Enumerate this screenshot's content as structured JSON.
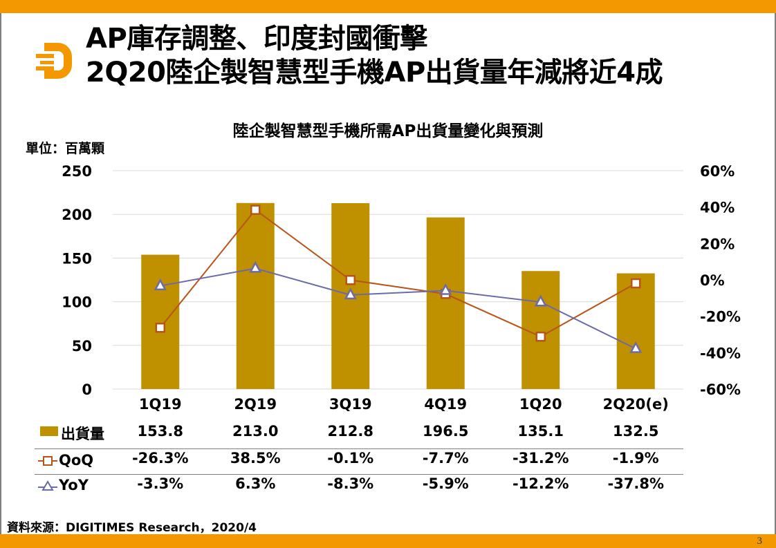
{
  "slide": {
    "title_line1": "AP庫存調整、印度封國衝擊",
    "title_line2": "2Q20陸企製智慧型手機AP出貨量年減將近4成",
    "page_number": "3",
    "source": "資料來源：DIGITIMES Research，2020/4",
    "logo_icon": "digitimes-d-logo-icon",
    "brand_color": "#f39800"
  },
  "chart_data": {
    "type": "bar",
    "title": "陸企製智慧型手機所需AP出貨量變化與預測",
    "unit_label": "單位：百萬顆",
    "categories": [
      "1Q19",
      "2Q19",
      "3Q19",
      "4Q19",
      "1Q20",
      "2Q20(e)"
    ],
    "left_axis": {
      "ylim": [
        0,
        250
      ],
      "ticks": [
        "0",
        "50",
        "100",
        "150",
        "200",
        "250"
      ]
    },
    "right_axis": {
      "ylim": [
        -60,
        60
      ],
      "ticks": [
        "-60%",
        "-40%",
        "-20%",
        "0%",
        "20%",
        "40%",
        "60%"
      ]
    },
    "grid": true,
    "series": [
      {
        "name": "出貨量",
        "type": "bar",
        "axis": "left",
        "color": "#bf9000",
        "values": [
          153.8,
          213.0,
          212.8,
          196.5,
          135.1,
          132.5
        ],
        "labels": [
          "153.8",
          "213.0",
          "212.8",
          "196.5",
          "135.1",
          "132.5"
        ]
      },
      {
        "name": "QoQ",
        "type": "line",
        "axis": "right",
        "marker": "square",
        "color": "#b8541a",
        "values": [
          -26.3,
          38.5,
          -0.1,
          -7.7,
          -31.2,
          -1.9
        ],
        "labels": [
          "-26.3%",
          "38.5%",
          "-0.1%",
          "-7.7%",
          "-31.2%",
          "-1.9%"
        ]
      },
      {
        "name": "YoY",
        "type": "line",
        "axis": "right",
        "marker": "triangle",
        "color": "#6b6ba8",
        "values": [
          -3.3,
          6.3,
          -8.3,
          -5.9,
          -12.2,
          -37.8
        ],
        "labels": [
          "-3.3%",
          "6.3%",
          "-8.3%",
          "-5.9%",
          "-12.2%",
          "-37.8%"
        ]
      }
    ],
    "legend": "data-table-below"
  }
}
